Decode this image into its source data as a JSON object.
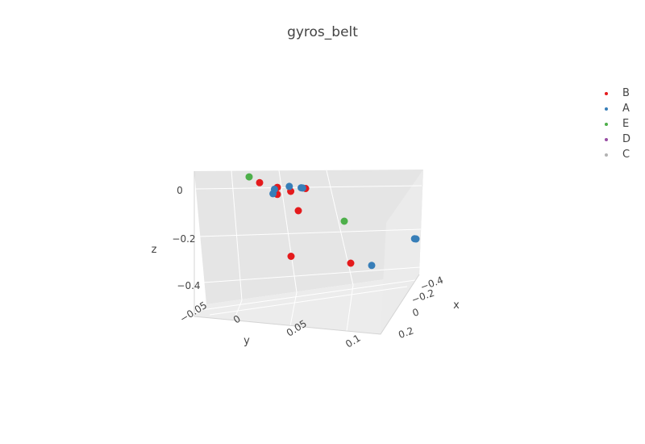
{
  "chart_data": {
    "type": "scatter3d",
    "title": "gyros_belt",
    "axes": {
      "x": {
        "title": "x",
        "ticks": [
          "−0.4",
          "−0.2",
          "0",
          "0.2"
        ]
      },
      "y": {
        "title": "y",
        "ticks": [
          "−0.05",
          "0",
          "0.05",
          "0.1"
        ]
      },
      "z": {
        "title": "z",
        "ticks": [
          "0",
          "−0.2",
          "−0.4"
        ]
      }
    },
    "legend": {
      "placement": "top-right",
      "entries": [
        {
          "name": "B",
          "color": "#e41a1c"
        },
        {
          "name": "A",
          "color": "#377eb8"
        },
        {
          "name": "E",
          "color": "#4daf4a"
        },
        {
          "name": "D",
          "color": "#984ea3"
        },
        {
          "name": "C",
          "color": "#b3b3b3"
        }
      ]
    },
    "series": [
      {
        "name": "B",
        "color": "#e41a1c",
        "points": [
          {
            "x": 0.05,
            "y": -0.03,
            "z": 0.0
          },
          {
            "x": 0.0,
            "y": -0.02,
            "z": -0.01
          },
          {
            "x": -0.02,
            "y": -0.01,
            "z": -0.02
          },
          {
            "x": 0.0,
            "y": -0.02,
            "z": -0.04
          },
          {
            "x": -0.05,
            "y": 0.0,
            "z": 0.0
          },
          {
            "x": 0.0,
            "y": 0.0,
            "z": -0.1
          },
          {
            "x": 0.05,
            "y": 0.0,
            "z": -0.3
          },
          {
            "x": 0.0,
            "y": 0.05,
            "z": -0.3
          }
        ]
      },
      {
        "name": "A",
        "color": "#377eb8",
        "points": [
          {
            "x": 0.02,
            "y": -0.02,
            "z": -0.02
          },
          {
            "x": 0.03,
            "y": -0.02,
            "z": -0.04
          },
          {
            "x": -0.01,
            "y": -0.01,
            "z": 0.0
          },
          {
            "x": -0.03,
            "y": 0.0,
            "z": 0.0
          },
          {
            "x": -0.02,
            "y": 0.0,
            "z": 0.0
          },
          {
            "x": -0.45,
            "y": 0.05,
            "z": -0.15
          },
          {
            "x": -0.44,
            "y": 0.05,
            "z": -0.15
          },
          {
            "x": 0.0,
            "y": 0.07,
            "z": -0.3
          }
        ]
      },
      {
        "name": "E",
        "color": "#4daf4a",
        "points": [
          {
            "x": 0.05,
            "y": -0.04,
            "z": 0.02
          },
          {
            "x": -0.1,
            "y": 0.03,
            "z": -0.12
          }
        ]
      },
      {
        "name": "D",
        "color": "#984ea3",
        "points": []
      },
      {
        "name": "C",
        "color": "#b3b3b3",
        "points": []
      }
    ]
  }
}
